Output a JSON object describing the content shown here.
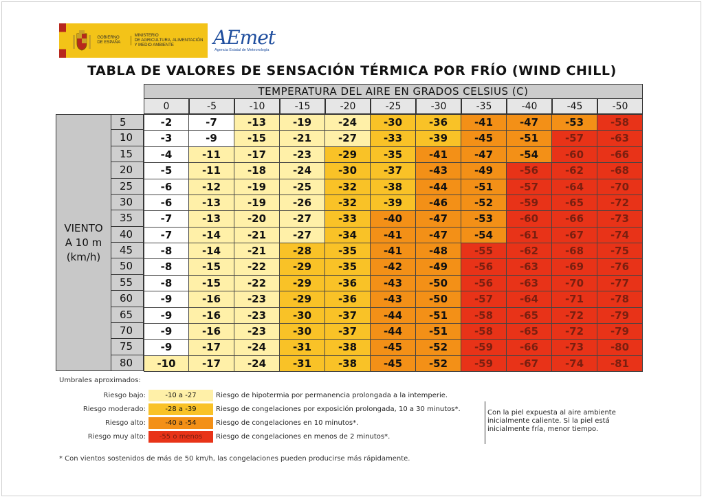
{
  "header": {
    "gov_line1": "GOBIERNO",
    "gov_line2": "DE ESPAÑA",
    "ministry_line1": "MINISTERIO",
    "ministry_line2": "DE AGRICULTURA, ALIMENTACIÓN",
    "ministry_line3": "Y MEDIO AMBIENTE",
    "aemet_logo": "AEmet",
    "aemet_sub": "Agencia Estatal de Meteorología"
  },
  "title": "TABLA DE VALORES DE SENSACIÓN TÉRMICA POR FRÍO (WIND CHILL)",
  "table": {
    "temp_header": "TEMPERATURA DEL AIRE EN GRADOS CELSIUS (C)",
    "temperatures": [
      "0",
      "-5",
      "-10",
      "-15",
      "-20",
      "-25",
      "-30",
      "-35",
      "-40",
      "-45",
      "-50"
    ],
    "wind_label_1": "VIENTO",
    "wind_label_2": "A 10 m",
    "wind_label_3": "(km/h)",
    "wind_speeds": [
      "5",
      "10",
      "15",
      "20",
      "25",
      "30",
      "35",
      "40",
      "45",
      "50",
      "55",
      "60",
      "65",
      "70",
      "75",
      "80"
    ],
    "values": [
      [
        -2,
        -7,
        -13,
        -19,
        -24,
        -30,
        -36,
        -41,
        -47,
        -53,
        -58
      ],
      [
        -3,
        -9,
        -15,
        -21,
        -27,
        -33,
        -39,
        -45,
        -51,
        -57,
        -63
      ],
      [
        -4,
        -11,
        -17,
        -23,
        -29,
        -35,
        -41,
        -47,
        -54,
        -60,
        -66
      ],
      [
        -5,
        -11,
        -18,
        -24,
        -30,
        -37,
        -43,
        -49,
        -56,
        -62,
        -68
      ],
      [
        -6,
        -12,
        -19,
        -25,
        -32,
        -38,
        -44,
        -51,
        -57,
        -64,
        -70
      ],
      [
        -6,
        -13,
        -19,
        -26,
        -32,
        -39,
        -46,
        -52,
        -59,
        -65,
        -72
      ],
      [
        -7,
        -13,
        -20,
        -27,
        -33,
        -40,
        -47,
        -53,
        -60,
        -66,
        -73
      ],
      [
        -7,
        -14,
        -21,
        -27,
        -34,
        -41,
        -47,
        -54,
        -61,
        -67,
        -74
      ],
      [
        -8,
        -14,
        -21,
        -28,
        -35,
        -41,
        -48,
        -55,
        -62,
        -68,
        -75
      ],
      [
        -8,
        -15,
        -22,
        -29,
        -35,
        -42,
        -49,
        -56,
        -63,
        -69,
        -76
      ],
      [
        -8,
        -15,
        -22,
        -29,
        -36,
        -43,
        -50,
        -56,
        -63,
        -70,
        -77
      ],
      [
        -9,
        -16,
        -23,
        -29,
        -36,
        -43,
        -50,
        -57,
        -64,
        -71,
        -78
      ],
      [
        -9,
        -16,
        -23,
        -30,
        -37,
        -44,
        -51,
        -58,
        -65,
        -72,
        -79
      ],
      [
        -9,
        -16,
        -23,
        -30,
        -37,
        -44,
        -51,
        -58,
        -65,
        -72,
        -79
      ],
      [
        -9,
        -17,
        -24,
        -31,
        -38,
        -45,
        -52,
        -59,
        -66,
        -73,
        -80
      ],
      [
        -10,
        -17,
        -24,
        -31,
        -38,
        -45,
        -52,
        -59,
        -67,
        -74,
        -81
      ]
    ]
  },
  "colors": {
    "none": "#ffffff",
    "low": "#fff0a8",
    "moderate": "#f9c227",
    "high": "#f39017",
    "very_high": "#e83318"
  },
  "legend": {
    "title": "Umbrales aproximados:",
    "items": [
      {
        "name": "Riesgo bajo:",
        "range": "-10 a -27",
        "desc": "Riesgo de hipotermia por permanencia prolongada a la intemperie."
      },
      {
        "name": "Riesgo moderado:",
        "range": "-28 a -39",
        "desc": "Riesgo de congelaciones por exposición prolongada, 10 a 30 minutos*."
      },
      {
        "name": "Riesgo alto:",
        "range": "-40 a -54",
        "desc": "Riesgo de congelaciones en 10 minutos*."
      },
      {
        "name": "Riesgo muy alto:",
        "range": "-55 o menos",
        "desc": "Riesgo de congelaciones en menos de 2 minutos*."
      }
    ],
    "note": "Con la piel expuesta al aire ambiente inicialmente caliente. Si la piel está inicialmente fría, menor tiempo."
  },
  "footnote": "* Con vientos sostenidos de más de 50 km/h, las congelaciones pueden producirse más rápidamente."
}
